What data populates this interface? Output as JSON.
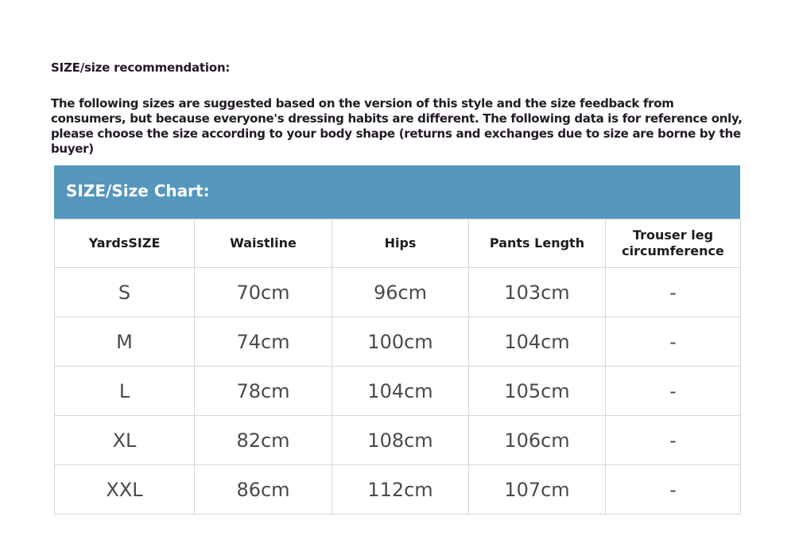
{
  "title": "SIZE/size recommendation:",
  "description": "The following sizes are suggested based on the version of this style and the size feedback from consumers, but because everyone's dressing habits are different. The following data is for reference only, please choose the size according to your body shape (returns and exchanges due to size are borne by the buyer)",
  "chart": {
    "heading": "SIZE/Size Chart:",
    "header_color": "#5596bd",
    "columns": [
      "YardsSIZE",
      "Waistline",
      "Hips",
      "Pants Length",
      "Trouser leg circumference"
    ],
    "rows": [
      [
        "S",
        "70cm",
        "96cm",
        "103cm",
        "-"
      ],
      [
        "M",
        "74cm",
        "100cm",
        "104cm",
        "-"
      ],
      [
        "L",
        "78cm",
        "104cm",
        "105cm",
        "-"
      ],
      [
        "XL",
        "82cm",
        "108cm",
        "106cm",
        "-"
      ],
      [
        "XXL",
        "86cm",
        "112cm",
        "107cm",
        "-"
      ]
    ]
  }
}
